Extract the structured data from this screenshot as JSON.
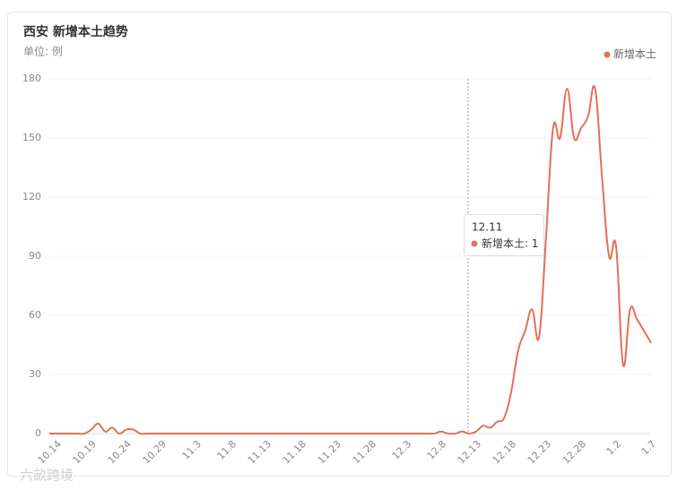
{
  "chart_data": {
    "type": "line",
    "title": "西安 新增本土趋势",
    "subtitle": "单位: 例",
    "categories": [
      null,
      "10.14",
      null,
      null,
      null,
      null,
      "10.19",
      null,
      null,
      null,
      null,
      "10.24",
      null,
      null,
      null,
      null,
      "10.29",
      null,
      null,
      null,
      null,
      "11.3",
      null,
      null,
      null,
      null,
      "11.8",
      null,
      null,
      null,
      null,
      "11.13",
      null,
      null,
      null,
      null,
      "11.18",
      null,
      null,
      null,
      null,
      "11.23",
      null,
      null,
      null,
      null,
      "11.28",
      null,
      null,
      null,
      null,
      "12.3",
      null,
      null,
      null,
      null,
      "12.8",
      null,
      null,
      null,
      null,
      "12.13",
      null,
      null,
      null,
      null,
      "12.18",
      null,
      null,
      null,
      null,
      "12.23",
      null,
      null,
      null,
      null,
      "12.28",
      null,
      null,
      null,
      null,
      "1.2",
      null,
      null,
      null,
      null,
      "1.7"
    ],
    "series": [
      {
        "name": "新增本土",
        "color": "#e2705a",
        "values": [
          0,
          0,
          0,
          0,
          0,
          0,
          2,
          5,
          1,
          3,
          0,
          2,
          2,
          0,
          0,
          0,
          0,
          0,
          0,
          0,
          0,
          0,
          0,
          0,
          0,
          0,
          0,
          0,
          0,
          0,
          0,
          0,
          0,
          0,
          0,
          0,
          0,
          0,
          0,
          0,
          0,
          0,
          0,
          0,
          0,
          0,
          0,
          0,
          0,
          0,
          0,
          0,
          0,
          0,
          0,
          0,
          1,
          0,
          0,
          1,
          0,
          1,
          4,
          3,
          6,
          8,
          21,
          42,
          52,
          63,
          49,
          100,
          155,
          150,
          175,
          150,
          155,
          161,
          175,
          130,
          90,
          95,
          35,
          63,
          58,
          52,
          46
        ]
      }
    ],
    "ylim": [
      0,
      180
    ],
    "yticks": [
      0,
      30,
      60,
      90,
      120,
      150,
      180
    ],
    "grid": true,
    "legend": "top-right",
    "tooltip": {
      "x": "12.11",
      "series": "新增本土",
      "value": 1
    },
    "watermark": "六畝跨境"
  }
}
